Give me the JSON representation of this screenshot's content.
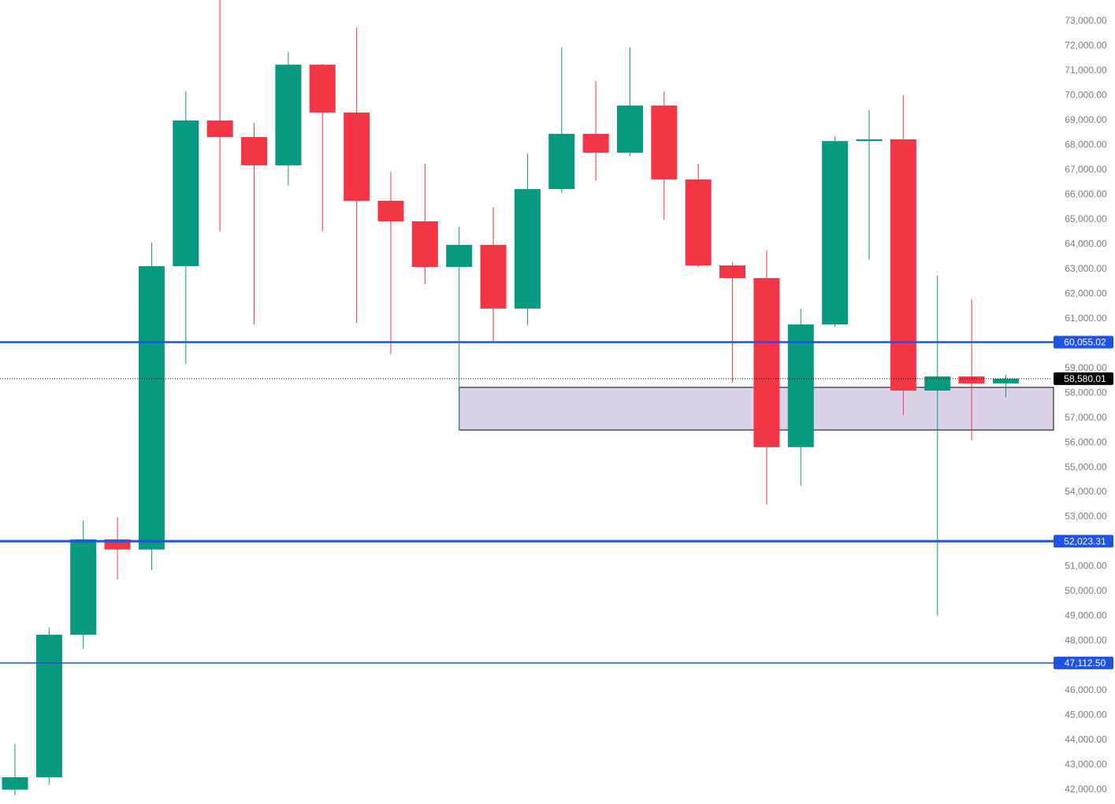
{
  "chart_data": {
    "type": "candlestick",
    "open": [
      42000,
      42500,
      48250,
      52100,
      51690,
      63120,
      69000,
      68330,
      67190,
      71250,
      69320,
      65760,
      64930,
      63090,
      63980,
      61410,
      66230,
      68460,
      67700,
      69600,
      66620,
      63150,
      62640,
      55820,
      60770,
      68170,
      68240,
      58100,
      58670,
      58390
    ],
    "high": [
      43840,
      48540,
      52860,
      52990,
      64070,
      70170,
      73900,
      68900,
      71760,
      71280,
      72750,
      66930,
      67250,
      64710,
      65500,
      67660,
      71950,
      70590,
      71950,
      70170,
      67250,
      63280,
      63760,
      61400,
      68360,
      69410,
      70010,
      62740,
      61790,
      58740
    ],
    "low": [
      41770,
      42190,
      47680,
      50480,
      50860,
      59180,
      64520,
      60770,
      66390,
      64520,
      60830,
      59560,
      62390,
      56510,
      60100,
      60740,
      66080,
      66580,
      67570,
      65000,
      63090,
      58420,
      53500,
      54260,
      60680,
      63380,
      57120,
      49020,
      56100,
      57820
    ],
    "close": [
      42500,
      48250,
      52100,
      51690,
      63120,
      69000,
      68330,
      67190,
      71250,
      69320,
      65760,
      64930,
      63090,
      63980,
      61410,
      66230,
      68460,
      67700,
      69600,
      66620,
      63150,
      62640,
      55820,
      60770,
      68170,
      68240,
      58100,
      58670,
      58390,
      58580.01
    ],
    "up_color": "#089981",
    "down_color": "#f23645",
    "ylim": [
      41420,
      73860
    ],
    "yticks": [
      {
        "value": 42000,
        "label": "42,000.00"
      },
      {
        "value": 43000,
        "label": "43,000.00"
      },
      {
        "value": 44000,
        "label": "44,000.00"
      },
      {
        "value": 45000,
        "label": "45,000.00"
      },
      {
        "value": 46000,
        "label": "46,000.00"
      },
      {
        "value": 48000,
        "label": "48,000.00"
      },
      {
        "value": 49000,
        "label": "49,000.00"
      },
      {
        "value": 50000,
        "label": "50,000.00"
      },
      {
        "value": 51000,
        "label": "51,000.00"
      },
      {
        "value": 53000,
        "label": "53,000.00"
      },
      {
        "value": 54000,
        "label": "54,000.00"
      },
      {
        "value": 55000,
        "label": "55,000.00"
      },
      {
        "value": 56000,
        "label": "56,000.00"
      },
      {
        "value": 57000,
        "label": "57,000.00"
      },
      {
        "value": 58000,
        "label": "58,000.00"
      },
      {
        "value": 59000,
        "label": "59,000.00"
      },
      {
        "value": 61000,
        "label": "61,000.00"
      },
      {
        "value": 62000,
        "label": "62,000.00"
      },
      {
        "value": 63000,
        "label": "63,000.00"
      },
      {
        "value": 64000,
        "label": "64,000.00"
      },
      {
        "value": 65000,
        "label": "65,000.00"
      },
      {
        "value": 66000,
        "label": "66,000.00"
      },
      {
        "value": 67000,
        "label": "67,000.00"
      },
      {
        "value": 68000,
        "label": "68,000.00"
      },
      {
        "value": 69000,
        "label": "69,000.00"
      },
      {
        "value": 70000,
        "label": "70,000.00"
      },
      {
        "value": 71000,
        "label": "71,000.00"
      },
      {
        "value": 72000,
        "label": "72,000.00"
      },
      {
        "value": 73000,
        "label": "73,000.00"
      }
    ],
    "levels": [
      {
        "value": 60055.02,
        "label": "60,055.02"
      },
      {
        "value": 52023.31,
        "label": "52,023.31"
      },
      {
        "value": 47112.5,
        "label": "47,112.50"
      }
    ],
    "level_color": "#1e53e5",
    "current_price": {
      "value": 58580.01,
      "label": "58,580.01"
    },
    "zone": {
      "top": 58230,
      "bottom": 56510,
      "color": "#dcd3eb"
    }
  }
}
